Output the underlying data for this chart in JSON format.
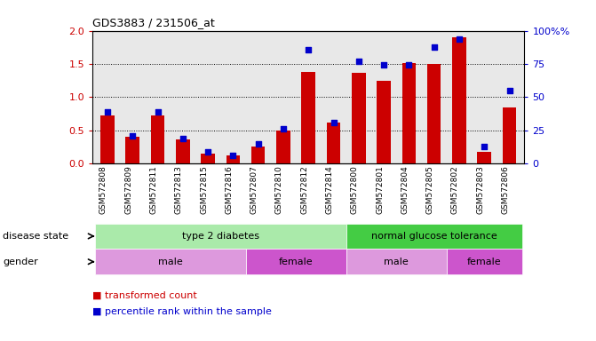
{
  "title": "GDS3883 / 231506_at",
  "samples": [
    "GSM572808",
    "GSM572809",
    "GSM572811",
    "GSM572813",
    "GSM572815",
    "GSM572816",
    "GSM572807",
    "GSM572810",
    "GSM572812",
    "GSM572814",
    "GSM572800",
    "GSM572801",
    "GSM572804",
    "GSM572805",
    "GSM572802",
    "GSM572803",
    "GSM572806"
  ],
  "transformed_count": [
    0.72,
    0.4,
    0.72,
    0.36,
    0.15,
    0.13,
    0.26,
    0.5,
    1.38,
    0.62,
    1.36,
    1.24,
    1.52,
    1.5,
    1.9,
    0.18,
    0.84
  ],
  "percentile_rank": [
    39,
    21,
    39,
    19,
    9,
    6,
    15,
    26,
    86,
    31,
    77,
    74,
    74,
    88,
    94,
    13,
    55
  ],
  "ylim_left": [
    0,
    2
  ],
  "ylim_right": [
    0,
    100
  ],
  "yticks_left": [
    0,
    0.5,
    1.0,
    1.5,
    2.0
  ],
  "yticks_right": [
    0,
    25,
    50,
    75,
    100
  ],
  "bar_color": "#cc0000",
  "dot_color": "#0000cc",
  "disease_state_groups": [
    {
      "label": "type 2 diabetes",
      "start": 0,
      "end": 10,
      "color": "#aaeaaa"
    },
    {
      "label": "normal glucose tolerance",
      "start": 10,
      "end": 17,
      "color": "#44cc44"
    }
  ],
  "gender_groups": [
    {
      "label": "male",
      "start": 0,
      "end": 6,
      "color": "#dd99dd"
    },
    {
      "label": "female",
      "start": 6,
      "end": 10,
      "color": "#cc55cc"
    },
    {
      "label": "male",
      "start": 10,
      "end": 14,
      "color": "#dd99dd"
    },
    {
      "label": "female",
      "start": 14,
      "end": 17,
      "color": "#cc55cc"
    }
  ],
  "bar_width": 0.55,
  "dot_size": 18,
  "grid_color": "black",
  "bg_color": "#e8e8e8"
}
